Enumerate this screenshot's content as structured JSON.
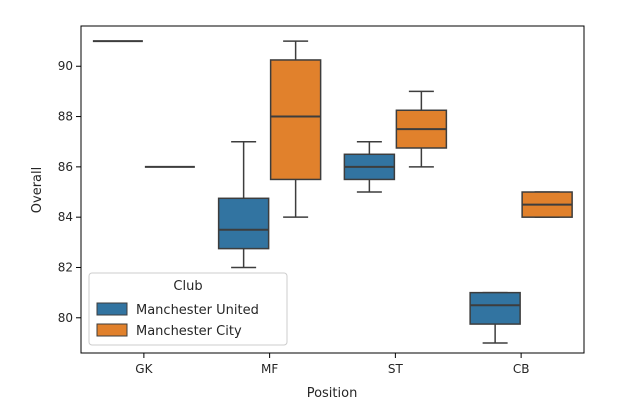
{
  "chart_data": {
    "type": "box",
    "xlabel": "Position",
    "ylabel": "Overall",
    "categories": [
      "GK",
      "MF",
      "ST",
      "CB"
    ],
    "ylim": [
      78.6,
      91.6
    ],
    "yticks": [
      80,
      82,
      84,
      86,
      88,
      90
    ],
    "legend": {
      "title": "Club",
      "position": "lower-left"
    },
    "series": [
      {
        "name": "Manchester United",
        "color": "#3274a1",
        "boxes": [
          {
            "category": "GK",
            "min": 91,
            "q1": 91,
            "median": 91,
            "q3": 91,
            "max": 91
          },
          {
            "category": "MF",
            "min": 82,
            "q1": 82.75,
            "median": 83.5,
            "q3": 84.75,
            "max": 87
          },
          {
            "category": "ST",
            "min": 85,
            "q1": 85.5,
            "median": 86,
            "q3": 86.5,
            "max": 87
          },
          {
            "category": "CB",
            "min": 79,
            "q1": 79.75,
            "median": 80.5,
            "q3": 81,
            "max": 81
          }
        ]
      },
      {
        "name": "Manchester City",
        "color": "#e1812c",
        "boxes": [
          {
            "category": "GK",
            "min": 86,
            "q1": 86,
            "median": 86,
            "q3": 86,
            "max": 86
          },
          {
            "category": "MF",
            "min": 84,
            "q1": 85.5,
            "median": 88,
            "q3": 90.25,
            "max": 91
          },
          {
            "category": "ST",
            "min": 86,
            "q1": 86.75,
            "median": 87.5,
            "q3": 88.25,
            "max": 89
          },
          {
            "category": "CB",
            "min": 84,
            "q1": 84,
            "median": 84.5,
            "q3": 85,
            "max": 85
          }
        ]
      }
    ]
  }
}
